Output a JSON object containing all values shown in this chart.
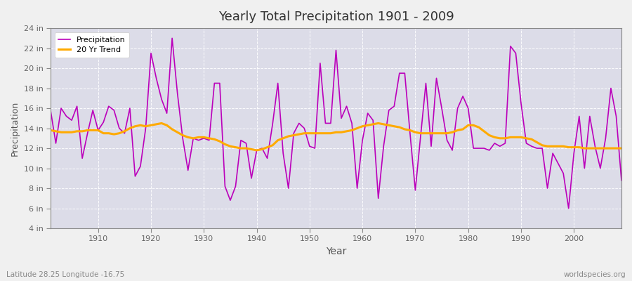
{
  "title": "Yearly Total Precipitation 1901 - 2009",
  "xlabel": "Year",
  "ylabel": "Precipitation",
  "subtitle_left": "Latitude 28.25 Longitude -16.75",
  "subtitle_right": "worldspecies.org",
  "ylim": [
    4,
    24
  ],
  "ytick_labels": [
    "4 in",
    "6 in",
    "8 in",
    "10 in",
    "12 in",
    "14 in",
    "16 in",
    "18 in",
    "20 in",
    "22 in",
    "24 in"
  ],
  "ytick_values": [
    4,
    6,
    8,
    10,
    12,
    14,
    16,
    18,
    20,
    22,
    24
  ],
  "xlim": [
    1901,
    2009
  ],
  "xtick_values": [
    1910,
    1920,
    1930,
    1940,
    1950,
    1960,
    1970,
    1980,
    1990,
    2000
  ],
  "fig_bg_color": "#f0f0f0",
  "plot_bg_color": "#dcdce8",
  "line_color_precip": "#bb00bb",
  "line_color_trend": "#ffaa00",
  "legend_label_precip": "Precipitation",
  "legend_label_trend": "20 Yr Trend",
  "years": [
    1901,
    1902,
    1903,
    1904,
    1905,
    1906,
    1907,
    1908,
    1909,
    1910,
    1911,
    1912,
    1913,
    1914,
    1915,
    1916,
    1917,
    1918,
    1919,
    1920,
    1921,
    1922,
    1923,
    1924,
    1925,
    1926,
    1927,
    1928,
    1929,
    1930,
    1931,
    1932,
    1933,
    1934,
    1935,
    1936,
    1937,
    1938,
    1939,
    1940,
    1941,
    1942,
    1943,
    1944,
    1945,
    1946,
    1947,
    1948,
    1949,
    1950,
    1951,
    1952,
    1953,
    1954,
    1955,
    1956,
    1957,
    1958,
    1959,
    1960,
    1961,
    1962,
    1963,
    1964,
    1965,
    1966,
    1967,
    1968,
    1969,
    1970,
    1971,
    1972,
    1973,
    1974,
    1975,
    1976,
    1977,
    1978,
    1979,
    1980,
    1981,
    1982,
    1983,
    1984,
    1985,
    1986,
    1987,
    1988,
    1989,
    1990,
    1991,
    1992,
    1993,
    1994,
    1995,
    1996,
    1997,
    1998,
    1999,
    2000,
    2001,
    2002,
    2003,
    2004,
    2005,
    2006,
    2007,
    2008,
    2009
  ],
  "precip": [
    15.8,
    12.5,
    16.0,
    15.2,
    14.8,
    16.2,
    11.0,
    13.5,
    15.8,
    13.8,
    14.6,
    16.2,
    15.8,
    14.0,
    13.5,
    16.0,
    9.2,
    10.2,
    14.0,
    21.5,
    19.0,
    16.9,
    15.5,
    23.0,
    17.5,
    13.0,
    9.8,
    13.0,
    12.8,
    13.0,
    12.8,
    18.5,
    18.5,
    8.2,
    6.8,
    8.2,
    12.8,
    12.5,
    9.0,
    11.8,
    12.0,
    11.0,
    14.4,
    18.5,
    11.5,
    8.0,
    13.5,
    14.5,
    14.0,
    12.2,
    12.0,
    20.5,
    14.5,
    14.5,
    21.8,
    15.0,
    16.2,
    14.5,
    8.0,
    12.8,
    15.5,
    14.8,
    7.0,
    12.2,
    15.8,
    16.2,
    19.5,
    19.5,
    13.5,
    7.8,
    13.2,
    18.5,
    12.2,
    19.0,
    16.0,
    12.8,
    11.8,
    16.0,
    17.2,
    16.0,
    12.0,
    12.0,
    12.0,
    11.8,
    12.5,
    12.2,
    12.5,
    22.2,
    21.5,
    16.5,
    12.5,
    12.2,
    12.0,
    12.0,
    8.0,
    11.5,
    10.5,
    9.5,
    6.0,
    11.5,
    15.2,
    10.0,
    15.2,
    12.2,
    10.0,
    13.0,
    18.0,
    15.2,
    8.8
  ],
  "trend": [
    13.8,
    13.7,
    13.6,
    13.6,
    13.6,
    13.7,
    13.7,
    13.8,
    13.8,
    13.8,
    13.5,
    13.5,
    13.4,
    13.5,
    13.7,
    14.0,
    14.2,
    14.3,
    14.2,
    14.3,
    14.4,
    14.5,
    14.3,
    13.9,
    13.6,
    13.3,
    13.1,
    13.0,
    13.1,
    13.1,
    13.0,
    12.9,
    12.7,
    12.4,
    12.2,
    12.1,
    12.0,
    12.0,
    11.9,
    11.8,
    11.9,
    12.1,
    12.3,
    12.8,
    13.0,
    13.2,
    13.3,
    13.4,
    13.5,
    13.5,
    13.5,
    13.5,
    13.5,
    13.5,
    13.6,
    13.6,
    13.7,
    13.8,
    14.0,
    14.2,
    14.3,
    14.4,
    14.5,
    14.4,
    14.3,
    14.2,
    14.1,
    13.9,
    13.8,
    13.6,
    13.5,
    13.5,
    13.5,
    13.5,
    13.5,
    13.5,
    13.6,
    13.8,
    13.9,
    14.3,
    14.3,
    14.1,
    13.7,
    13.3,
    13.1,
    13.0,
    13.0,
    13.1,
    13.1,
    13.1,
    13.0,
    12.9,
    12.6,
    12.3,
    12.2,
    12.2,
    12.2,
    12.2,
    12.1,
    12.1,
    12.1,
    12.0,
    12.0,
    12.0,
    12.0,
    12.0,
    12.0,
    12.0,
    12.0
  ]
}
